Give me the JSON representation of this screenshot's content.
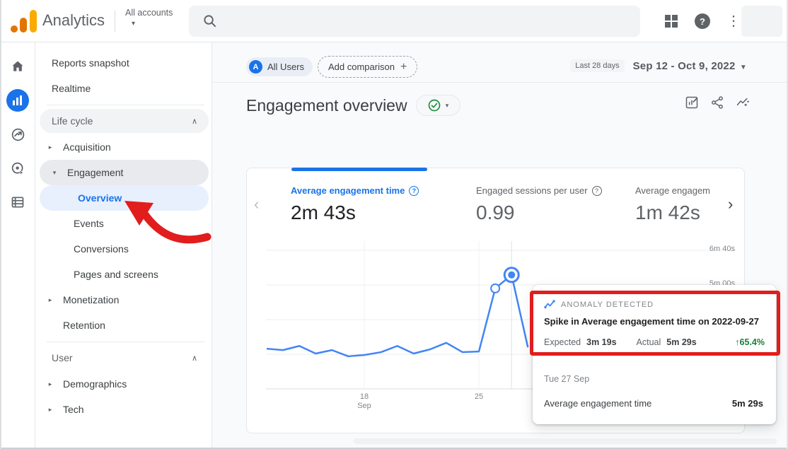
{
  "topbar": {
    "product": "Analytics",
    "account_scope": "All accounts",
    "account_caret": "▾",
    "help_glyph": "?",
    "kebab_glyph": "⋮"
  },
  "sidebar": {
    "primary": [
      {
        "label": "Reports snapshot"
      },
      {
        "label": "Realtime"
      }
    ],
    "sections": [
      {
        "label": "Life cycle",
        "collapse_glyph": "∧",
        "items": [
          {
            "label": "Acquisition",
            "caret": "▸"
          },
          {
            "label": "Engagement",
            "caret": "▾"
          },
          {
            "label": "Overview"
          },
          {
            "label": "Events"
          },
          {
            "label": "Conversions"
          },
          {
            "label": "Pages and screens"
          },
          {
            "label": "Monetization",
            "caret": "▸"
          },
          {
            "label": "Retention"
          }
        ]
      },
      {
        "label": "User",
        "collapse_glyph": "∧",
        "items": [
          {
            "label": "Demographics",
            "caret": "▸"
          },
          {
            "label": "Tech",
            "caret": "▸"
          }
        ]
      }
    ]
  },
  "controls": {
    "audience_initial": "A",
    "audience_chip": "All Users",
    "add_comparison_label": "Add comparison",
    "plus_glyph": "+",
    "range_shortcut": "Last 28 days",
    "date_range": "Sep 12 - Oct 9, 2022",
    "date_caret": "▼"
  },
  "report": {
    "title": "Engagement overview",
    "status_caret": "▾"
  },
  "metrics": {
    "prev_glyph": "‹",
    "next_glyph": "›",
    "help_glyph": "?",
    "cards": [
      {
        "label": "Average engagement time",
        "value": "2m 43s",
        "selected": true
      },
      {
        "label": "Engaged sessions per user",
        "value": "0.99",
        "selected": false
      },
      {
        "label": "Average engagem",
        "value": "1m 42s",
        "selected": false
      }
    ]
  },
  "chart_data": {
    "type": "line",
    "metric": "Average engagement time (daily)",
    "x_start_date": "Sep 12",
    "values_seconds": [
      116,
      112,
      124,
      102,
      112,
      94,
      98,
      106,
      124,
      102,
      114,
      133,
      106,
      108,
      290,
      329,
      120
    ],
    "anomaly_index": 15,
    "open_point_index": 14,
    "y_ticks": [
      {
        "label": "6m 40s",
        "seconds": 400
      },
      {
        "label": "5m 00s",
        "seconds": 300
      }
    ],
    "x_ticks": [
      {
        "top": "18",
        "bottom": "Sep",
        "day_index": 6
      },
      {
        "top": "25",
        "bottom": "",
        "day_index": 13
      }
    ],
    "ylim_seconds": [
      0,
      437
    ],
    "grid": true,
    "legend": "none"
  },
  "tooltip": {
    "badge": "ANOMALY DETECTED",
    "headline": "Spike in Average engagement time on 2022-09-27",
    "expected_label": "Expected",
    "expected_value": "3m 19s",
    "actual_label": "Actual",
    "actual_value": "5m 29s",
    "change": "↑65.4%",
    "date": "Tue 27 Sep",
    "metric_label": "Average engagement time",
    "metric_value": "5m 29s"
  },
  "colors": {
    "accent": "#1a73e8",
    "chart_line": "#4285f4",
    "anomaly_green": "#188038",
    "annotation_red": "#e21d1d",
    "logo_amber": "#f9ab00",
    "logo_orange": "#e37400"
  }
}
